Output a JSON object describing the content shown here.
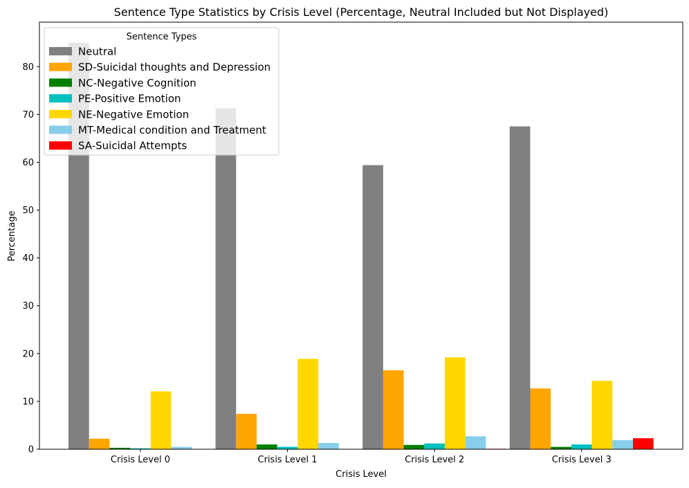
{
  "chart_data": {
    "type": "bar",
    "title": "Sentence Type Statistics by Crisis Level (Percentage, Neutral Included but Not Displayed)",
    "xlabel": "Crisis Level",
    "ylabel": "Percentage",
    "categories": [
      "Crisis Level 0",
      "Crisis Level 1",
      "Crisis Level 2",
      "Crisis Level 3"
    ],
    "ylim": [
      0,
      89.3
    ],
    "yticks": [
      0,
      10,
      20,
      30,
      40,
      50,
      60,
      70,
      80
    ],
    "grid": false,
    "legend": {
      "title": "Sentence Types",
      "placement": "top-left"
    },
    "series": [
      {
        "name": "Neutral",
        "color": "#808080",
        "values": [
          85.0,
          71.3,
          59.4,
          67.5
        ]
      },
      {
        "name": "SD-Suicidal thoughts and Depression",
        "color": "#FFA500",
        "values": [
          2.2,
          7.4,
          16.5,
          12.7
        ]
      },
      {
        "name": "NC-Negative Cognition",
        "color": "#008000",
        "values": [
          0.3,
          1.0,
          0.9,
          0.5
        ]
      },
      {
        "name": "PE-Positive Emotion",
        "color": "#00BFBF",
        "values": [
          0.2,
          0.5,
          1.2,
          1.0
        ]
      },
      {
        "name": "NE-Negative Emotion",
        "color": "#FFD700",
        "values": [
          12.1,
          18.9,
          19.2,
          14.3
        ]
      },
      {
        "name": "MT-Medical condition and Treatment",
        "color": "#87CEEB",
        "values": [
          0.5,
          1.3,
          2.7,
          1.9
        ]
      },
      {
        "name": "SA-Suicidal Attempts",
        "color": "#FF0000",
        "values": [
          0.0,
          0.0,
          0.1,
          2.3
        ]
      }
    ]
  }
}
